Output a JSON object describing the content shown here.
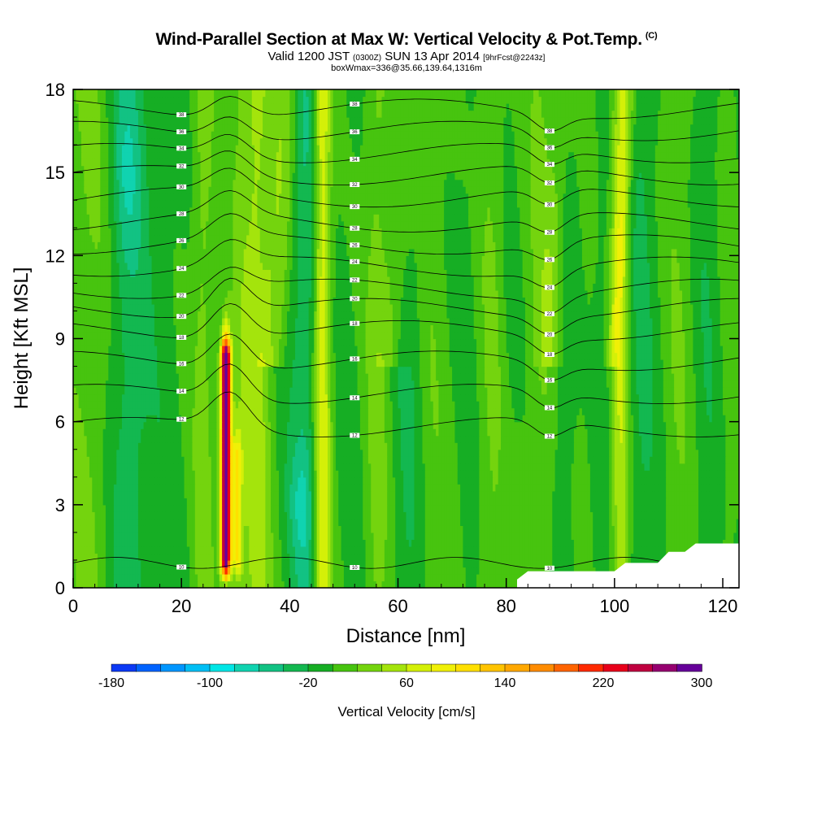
{
  "title": {
    "line1": "Wind-Parallel Section at Max W: Vertical Velocity & Pot.Temp.",
    "line1_mark": "(C)",
    "line2_a": "Valid 1200 JST",
    "line2_b": "(0300Z)",
    "line2_c": "SUN 13 Apr 2014",
    "line2_d": "[9hrFcst@2243z]",
    "line3": "boxWmax=336@35.66,139.64,1316m"
  },
  "chart_data": {
    "type": "heatmap",
    "xlabel": "Distance [nm]",
    "ylabel": "Height [Kft MSL]",
    "xlim": [
      0,
      123
    ],
    "ylim": [
      0,
      18
    ],
    "x_ticks": [
      0,
      20,
      40,
      60,
      80,
      100,
      120
    ],
    "y_ticks": [
      0,
      3,
      6,
      9,
      12,
      15,
      18
    ],
    "colorbar": {
      "title": "Vertical Velocity [cm/s]",
      "min": -180,
      "max": 300,
      "step": 20,
      "labels": [
        -180,
        -100,
        -20,
        60,
        140,
        220,
        300
      ],
      "colors": [
        "#0000ff",
        "#0c39f5",
        "#0063ff",
        "#0096ff",
        "#00bff5",
        "#00e6e6",
        "#10d3b0",
        "#12c283",
        "#13b850",
        "#16ae24",
        "#47c40f",
        "#74d40e",
        "#a4e40c",
        "#d4f008",
        "#f0f007",
        "#ffe000",
        "#ffc400",
        "#ffa800",
        "#ff8c00",
        "#ff6400",
        "#ff2a00",
        "#e8001a",
        "#c00040",
        "#960070",
        "#66009a"
      ]
    },
    "max_updraft": {
      "x_nm": 28,
      "top_kft": 8.5,
      "value_cm_s": 336
    },
    "terrain_blocked": [
      [
        82,
        0.3
      ],
      [
        84,
        0.6
      ],
      [
        100,
        0.6
      ],
      [
        102,
        0.9
      ],
      [
        108,
        0.9
      ],
      [
        110,
        1.3
      ],
      [
        113,
        1.3
      ],
      [
        115,
        1.6
      ],
      [
        123,
        1.6
      ]
    ],
    "pot_temp_contours": [
      {
        "label": "10",
        "y": 0.9
      },
      {
        "label": "12",
        "y": 5.8
      },
      {
        "label": "14",
        "y": 7.0
      },
      {
        "label": "16",
        "y": 8.2
      },
      {
        "label": "18",
        "y": 9.3
      },
      {
        "label": "20",
        "y": 10.1
      },
      {
        "label": "22",
        "y": 10.8
      },
      {
        "label": "24",
        "y": 11.6
      },
      {
        "label": "26",
        "y": 12.4
      },
      {
        "label": "28",
        "y": 13.2
      },
      {
        "label": "30",
        "y": 14.1
      },
      {
        "label": "32",
        "y": 14.9
      },
      {
        "label": "34",
        "y": 15.7
      },
      {
        "label": "36",
        "y": 16.5
      },
      {
        "label": "38",
        "y": 17.3
      }
    ]
  }
}
